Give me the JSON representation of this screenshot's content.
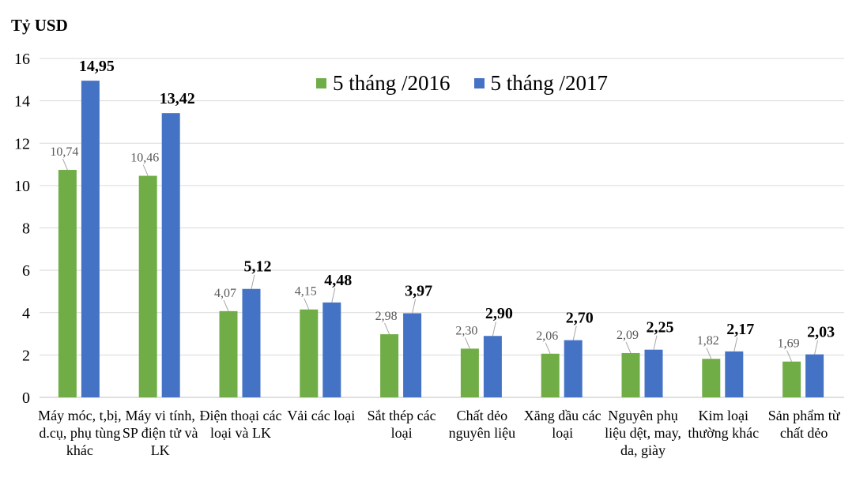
{
  "chart_data": {
    "type": "bar",
    "ylabel": "Tỷ USD",
    "ylim": [
      0,
      16
    ],
    "yticks": [
      "0",
      "2",
      "4",
      "6",
      "8",
      "10",
      "12",
      "14",
      "16"
    ],
    "grid": true,
    "legend_position": "top-center",
    "categories": [
      "Máy móc, t,bị, d.cụ, phụ tùng khác",
      "Máy vi tính, SP điện tử và LK",
      "Điện thoại các loại và LK",
      "Vải các loại",
      "Sắt thép các loại",
      "Chất dẻo nguyên liệu",
      "Xăng dầu các loại",
      "Nguyên phụ liệu dệt, may, da, giày",
      "Kim loại thường khác",
      "Sản phẩm từ chất dẻo"
    ],
    "series": [
      {
        "name": "5 tháng /2016",
        "color": "#70AD47",
        "values": [
          10.74,
          10.46,
          4.07,
          4.15,
          2.98,
          2.3,
          2.06,
          2.09,
          1.82,
          1.69
        ],
        "labels": [
          "10,74",
          "10,46",
          "4,07",
          "4,15",
          "2,98",
          "2,30",
          "2,06",
          "2,09",
          "1,82",
          "1,69"
        ]
      },
      {
        "name": "5 tháng /2017",
        "color": "#4472C4",
        "values": [
          14.95,
          13.42,
          5.12,
          4.48,
          3.97,
          2.9,
          2.7,
          2.25,
          2.17,
          2.03
        ],
        "labels": [
          "14,95",
          "13,42",
          "5,12",
          "4,48",
          "3,97",
          "2,90",
          "2,70",
          "2,25",
          "2,17",
          "2,03"
        ]
      }
    ]
  }
}
